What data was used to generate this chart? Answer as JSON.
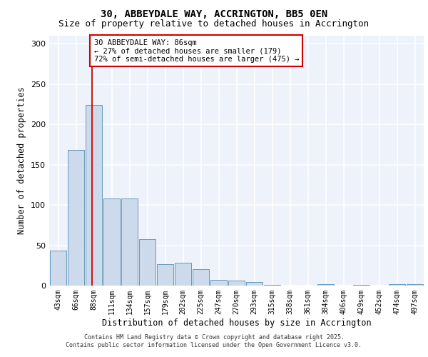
{
  "title_line1": "30, ABBEYDALE WAY, ACCRINGTON, BB5 0EN",
  "title_line2": "Size of property relative to detached houses in Accrington",
  "xlabel": "Distribution of detached houses by size in Accrington",
  "ylabel": "Number of detached properties",
  "categories": [
    "43sqm",
    "66sqm",
    "88sqm",
    "111sqm",
    "134sqm",
    "157sqm",
    "179sqm",
    "202sqm",
    "225sqm",
    "247sqm",
    "270sqm",
    "293sqm",
    "315sqm",
    "338sqm",
    "361sqm",
    "384sqm",
    "406sqm",
    "429sqm",
    "452sqm",
    "474sqm",
    "497sqm"
  ],
  "values": [
    43,
    168,
    224,
    108,
    108,
    58,
    27,
    28,
    20,
    7,
    6,
    4,
    1,
    0,
    0,
    2,
    0,
    1,
    0,
    2,
    2
  ],
  "bar_color": "#cddaeb",
  "bar_edge_color": "#6699bb",
  "background_color": "#eef2fb",
  "grid_color": "#ffffff",
  "ref_line_color": "#cc0000",
  "annotation_text": "30 ABBEYDALE WAY: 86sqm\n← 27% of detached houses are smaller (179)\n72% of semi-detached houses are larger (475) →",
  "annotation_box_color": "#cc0000",
  "ylim": [
    0,
    310
  ],
  "yticks": [
    0,
    50,
    100,
    150,
    200,
    250,
    300
  ],
  "footer_line1": "Contains HM Land Registry data © Crown copyright and database right 2025.",
  "footer_line2": "Contains public sector information licensed under the Open Government Licence v3.0.",
  "title_fontsize": 10,
  "subtitle_fontsize": 9,
  "xlabel_fontsize": 8.5,
  "ylabel_fontsize": 8.5
}
